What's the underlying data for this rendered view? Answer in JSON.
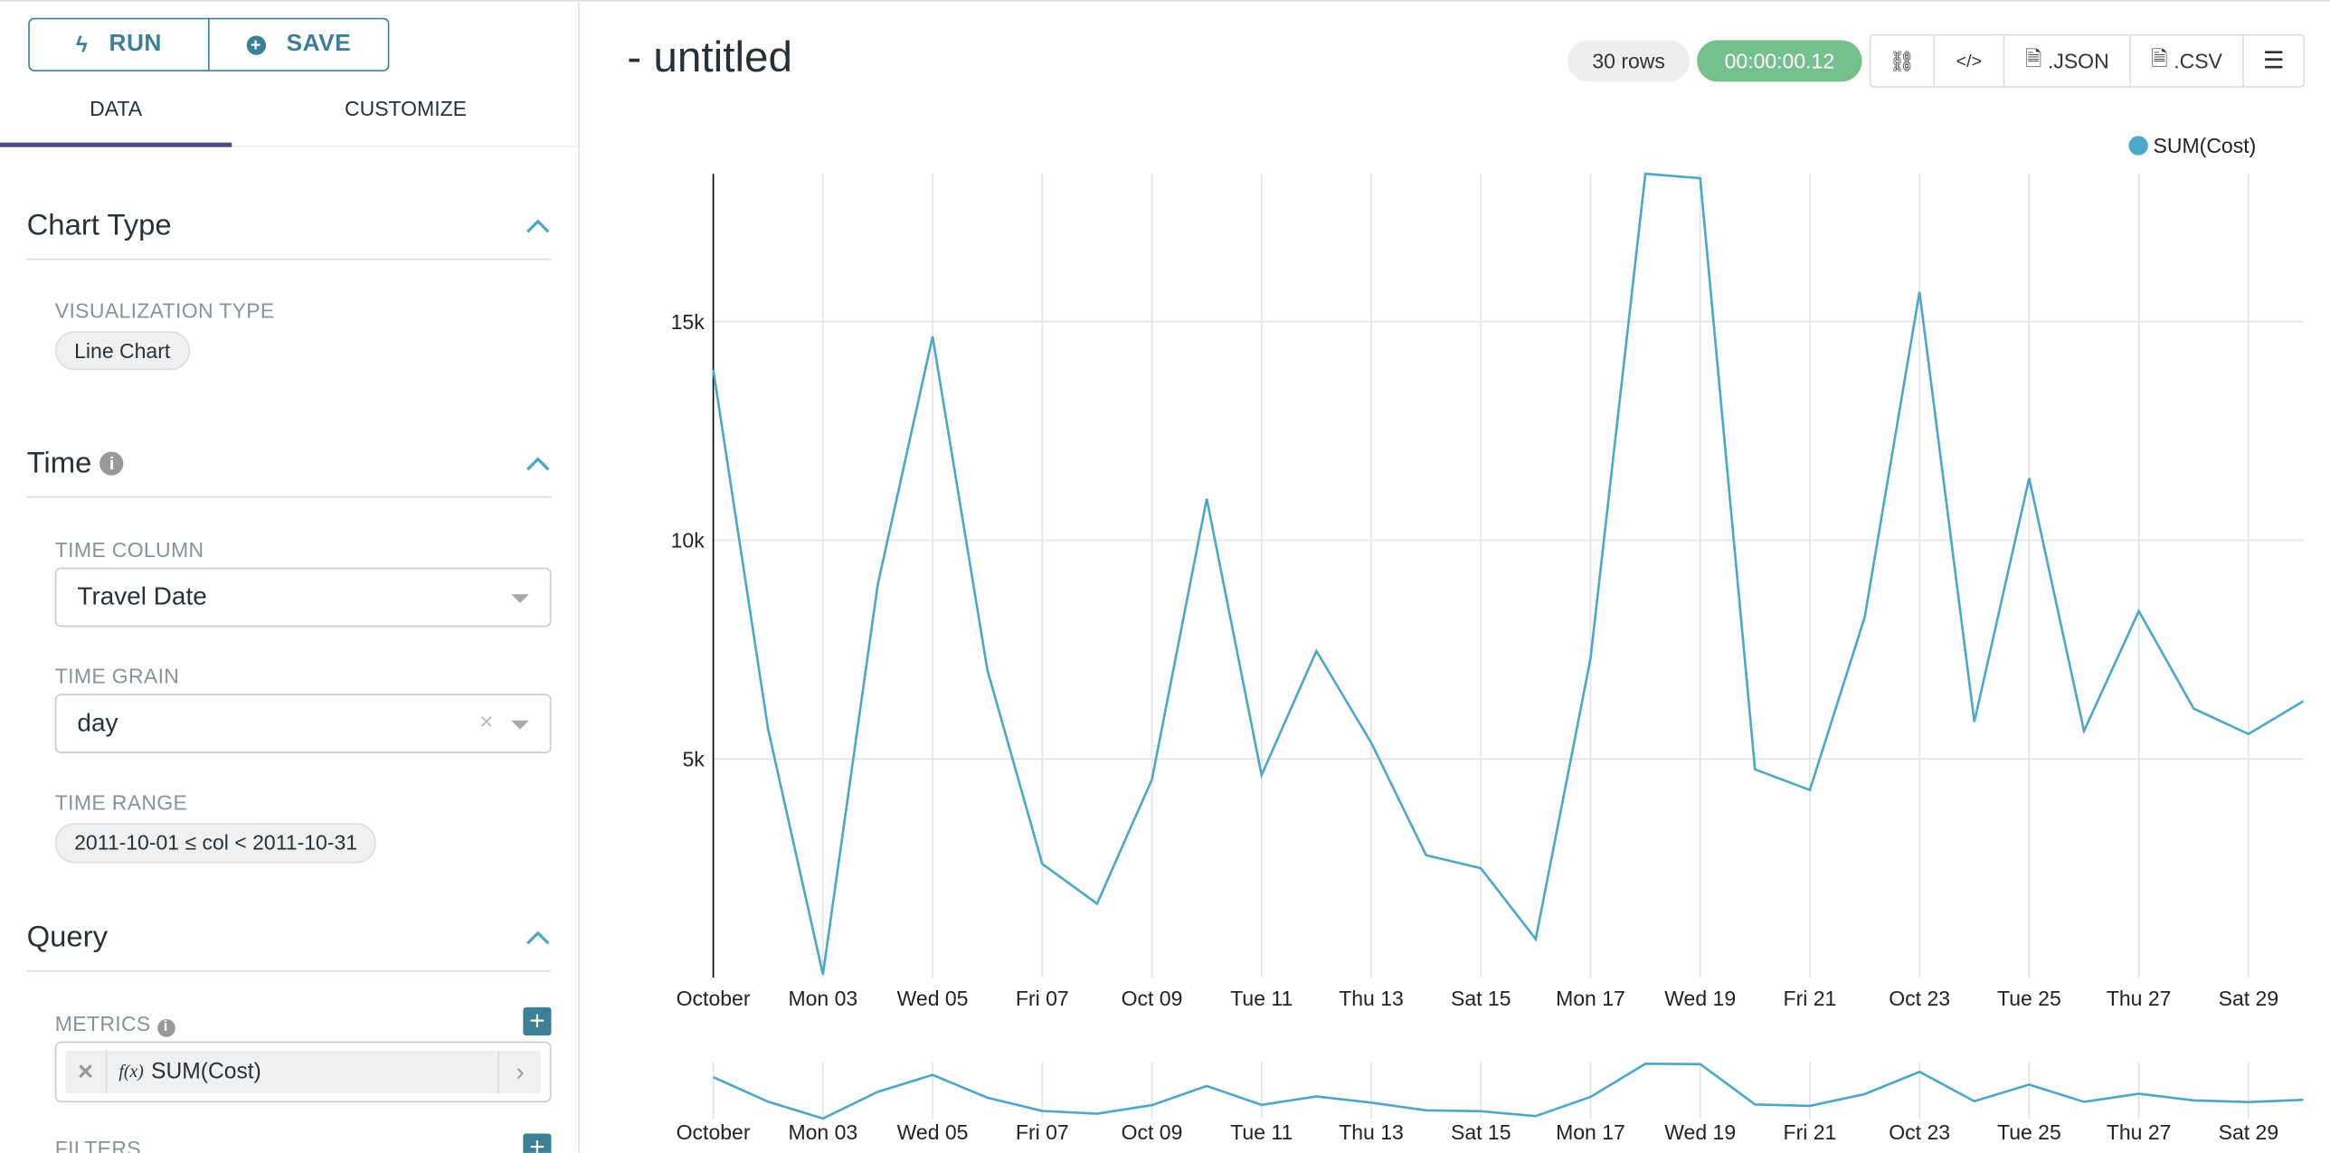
{
  "toolbar": {
    "run_label": "RUN",
    "save_label": "SAVE"
  },
  "tabs": [
    {
      "label": "DATA",
      "active": true
    },
    {
      "label": "CUSTOMIZE",
      "active": false
    }
  ],
  "sections": {
    "chart_type": {
      "title": "Chart Type",
      "viz_label": "VISUALIZATION TYPE",
      "viz_value": "Line Chart"
    },
    "time": {
      "title": "Time",
      "time_column_label": "TIME COLUMN",
      "time_column_value": "Travel Date",
      "time_grain_label": "TIME GRAIN",
      "time_grain_value": "day",
      "time_range_label": "TIME RANGE",
      "time_range_value": "2011-10-01 ≤ col < 2011-10-31"
    },
    "query": {
      "title": "Query",
      "metrics_label": "METRICS",
      "metric_value": "SUM(Cost)",
      "metric_fx": "f(x)",
      "filters_label": "FILTERS"
    }
  },
  "header": {
    "title": "- untitled",
    "rows": "30 rows",
    "duration": "00:00:00.12",
    "json_label": ".JSON",
    "csv_label": ".CSV"
  },
  "colors": {
    "accent": "#3d7f97",
    "series": "#4fa7c7",
    "success": "#76c08e",
    "tab_underline": "#484c7a"
  },
  "chart_data": {
    "type": "line",
    "legend": {
      "position": "top-right",
      "entries": [
        "SUM(Cost)"
      ]
    },
    "series": [
      {
        "name": "SUM(Cost)",
        "values": [
          13900,
          5680,
          70,
          8990,
          14660,
          7030,
          2600,
          1690,
          4530,
          10950,
          4630,
          7470,
          5370,
          2800,
          2500,
          880,
          7300,
          18380,
          18280,
          4760,
          4290,
          8240,
          15680,
          5850,
          11420,
          5640,
          8380,
          6150,
          5570,
          6320
        ]
      }
    ],
    "x": [
      "2011-10-01",
      "2011-10-02",
      "2011-10-03",
      "2011-10-04",
      "2011-10-05",
      "2011-10-06",
      "2011-10-07",
      "2011-10-08",
      "2011-10-09",
      "2011-10-10",
      "2011-10-11",
      "2011-10-12",
      "2011-10-13",
      "2011-10-14",
      "2011-10-15",
      "2011-10-16",
      "2011-10-17",
      "2011-10-18",
      "2011-10-19",
      "2011-10-20",
      "2011-10-21",
      "2011-10-22",
      "2011-10-23",
      "2011-10-24",
      "2011-10-25",
      "2011-10-26",
      "2011-10-27",
      "2011-10-28",
      "2011-10-29",
      "2011-10-30"
    ],
    "x_tick_labels": [
      "October",
      "Mon 03",
      "Wed 05",
      "Fri 07",
      "Oct 09",
      "Tue 11",
      "Thu 13",
      "Sat 15",
      "Mon 17",
      "Wed 19",
      "Fri 21",
      "Oct 23",
      "Tue 25",
      "Thu 27",
      "Sat 29"
    ],
    "y_ticks": [
      5000,
      10000,
      15000
    ],
    "y_tick_labels": [
      "5k",
      "10k",
      "15k"
    ],
    "ylim": [
      0,
      18380
    ],
    "grid": true,
    "has_range_selector": true
  }
}
